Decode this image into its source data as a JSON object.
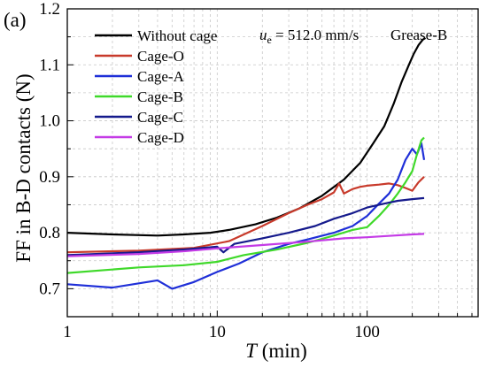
{
  "chart_data": {
    "type": "line",
    "panel_label": "(a)",
    "annotation": {
      "u_symbol": "u",
      "u_subscript": "e",
      "speed_text": " = 512.0 mm/s",
      "grease": "Grease-B"
    },
    "xlabel_italic": "T",
    "xlabel_unit": " (min)",
    "ylabel": "FF in B-D contacts (N)",
    "xscale": "log",
    "xlim": [
      1,
      550
    ],
    "ylim": [
      0.65,
      1.2
    ],
    "xticks": [
      {
        "value": 1,
        "label": "1"
      },
      {
        "value": 10,
        "label": "10"
      },
      {
        "value": 100,
        "label": "100"
      }
    ],
    "yticks": [
      {
        "value": 0.7,
        "label": "0.7"
      },
      {
        "value": 0.8,
        "label": "0.8"
      },
      {
        "value": 0.9,
        "label": "0.9"
      },
      {
        "value": 1.0,
        "label": "1.0"
      },
      {
        "value": 1.1,
        "label": "1.1"
      },
      {
        "value": 1.2,
        "label": "1.2"
      }
    ],
    "grid": true,
    "legend_position": "top-left",
    "series": [
      {
        "name": "Without cage",
        "color": "#000000",
        "x": [
          1,
          2,
          4,
          6,
          9,
          12,
          18,
          25,
          35,
          50,
          70,
          90,
          110,
          130,
          150,
          170,
          190,
          205,
          220,
          235,
          245
        ],
        "y": [
          0.8,
          0.797,
          0.795,
          0.797,
          0.8,
          0.805,
          0.815,
          0.827,
          0.843,
          0.866,
          0.895,
          0.925,
          0.96,
          0.99,
          1.03,
          1.07,
          1.1,
          1.12,
          1.135,
          1.145,
          1.148
        ]
      },
      {
        "name": "Cage-O",
        "color": "#c83a2b",
        "x": [
          1,
          3,
          7,
          12,
          20,
          30,
          40,
          50,
          60,
          65,
          70,
          80,
          90,
          100,
          120,
          140,
          160,
          180,
          200,
          220,
          240
        ],
        "y": [
          0.765,
          0.768,
          0.773,
          0.785,
          0.812,
          0.835,
          0.85,
          0.86,
          0.872,
          0.888,
          0.87,
          0.878,
          0.882,
          0.884,
          0.886,
          0.888,
          0.885,
          0.88,
          0.875,
          0.89,
          0.9
        ]
      },
      {
        "name": "Cage-A",
        "color": "#1f2fd8",
        "x": [
          1,
          2,
          4,
          5,
          7,
          10,
          14,
          20,
          30,
          40,
          60,
          80,
          100,
          120,
          140,
          160,
          180,
          200,
          215,
          230,
          240
        ],
        "y": [
          0.708,
          0.702,
          0.715,
          0.7,
          0.712,
          0.73,
          0.745,
          0.765,
          0.78,
          0.788,
          0.8,
          0.812,
          0.83,
          0.852,
          0.87,
          0.895,
          0.93,
          0.95,
          0.94,
          0.96,
          0.93
        ]
      },
      {
        "name": "Cage-B",
        "color": "#3fd92a",
        "x": [
          1,
          3,
          6,
          10,
          15,
          25,
          40,
          60,
          80,
          100,
          120,
          140,
          160,
          180,
          200,
          215,
          230,
          240
        ],
        "y": [
          0.728,
          0.738,
          0.742,
          0.748,
          0.76,
          0.77,
          0.782,
          0.795,
          0.805,
          0.81,
          0.83,
          0.85,
          0.87,
          0.89,
          0.91,
          0.94,
          0.965,
          0.97
        ]
      },
      {
        "name": "Cage-C",
        "color": "#151a8c",
        "x": [
          1,
          3,
          6,
          10,
          11,
          13,
          20,
          30,
          45,
          60,
          80,
          100,
          130,
          160,
          200,
          240
        ],
        "y": [
          0.76,
          0.765,
          0.77,
          0.775,
          0.765,
          0.78,
          0.79,
          0.8,
          0.812,
          0.825,
          0.835,
          0.845,
          0.852,
          0.857,
          0.86,
          0.862
        ]
      },
      {
        "name": "Cage-D",
        "color": "#c43be6",
        "x": [
          1,
          3,
          6,
          10,
          20,
          40,
          70,
          100,
          150,
          200,
          240
        ],
        "y": [
          0.758,
          0.762,
          0.767,
          0.772,
          0.778,
          0.784,
          0.79,
          0.792,
          0.795,
          0.797,
          0.798
        ]
      }
    ]
  }
}
